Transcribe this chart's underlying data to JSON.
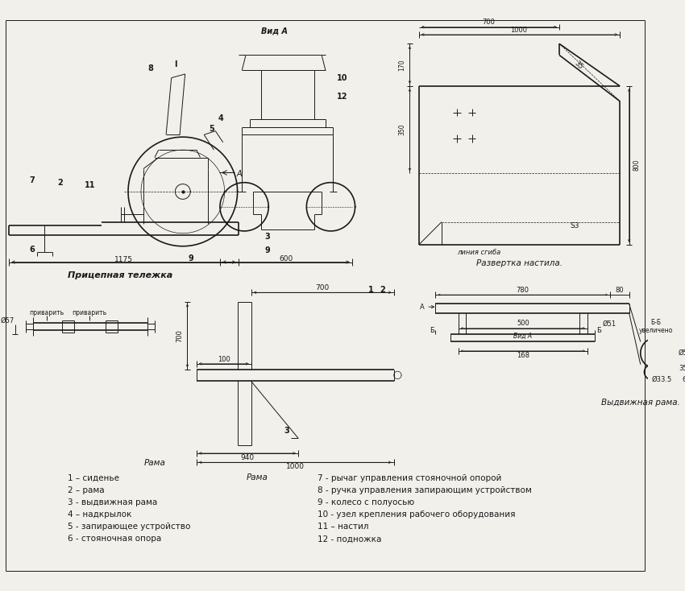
{
  "bg_color": "#f2f0eb",
  "line_color": "#1a1a1a",
  "title_main_left": "Прицепная тележка",
  "title_main_right": "Развертка настила.",
  "title_bottom_left": "Рама",
  "title_bottom_right": "Выдвижная рама.",
  "legend_left": [
    "1 – сиденье",
    "2 – рама",
    "3 - выдвижная рама",
    "4 – надкрылок",
    "5 - запирающее устройство",
    "6 - стояночная опора"
  ],
  "legend_right": [
    "7 - рычаг управления стояночной опорой",
    "8 - ручка управления запирающим устройством",
    "9 - колесо с полуосью",
    "10 - узел крепления рабочего оборудования",
    "11 – настил",
    "12 - подножка"
  ]
}
